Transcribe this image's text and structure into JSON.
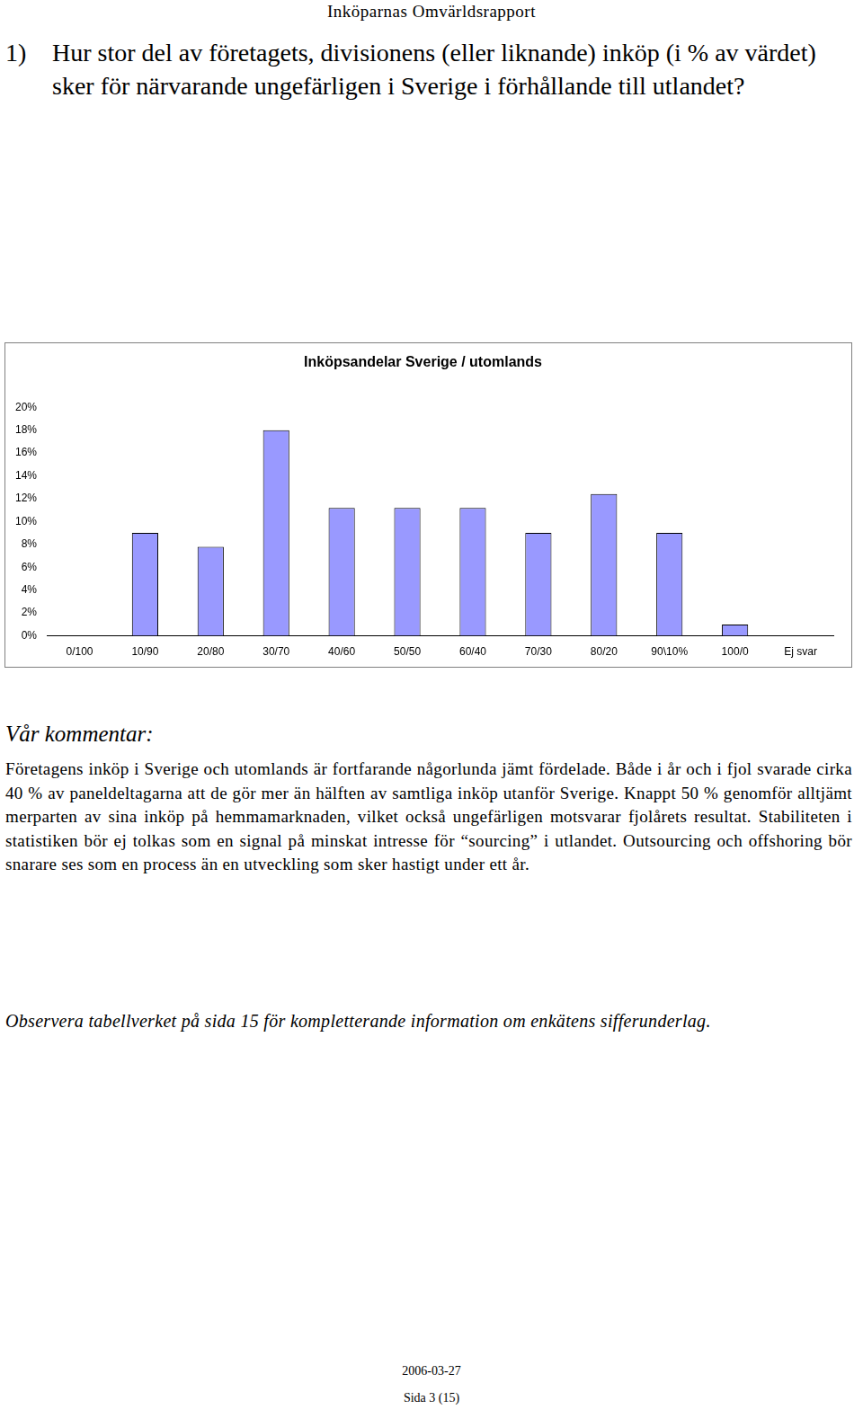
{
  "header": {
    "title": "Inköparnas Omvärldsrapport"
  },
  "question": {
    "number": "1)",
    "text": "Hur stor del av företagets, divisionens (eller liknande) inköp (i % av värdet) sker för närvarande ungefärligen i Sverige i förhållande till utlandet?"
  },
  "chart_data": {
    "type": "bar",
    "title": "Inköpsandelar Sverige / utomlands",
    "categories": [
      "0/100",
      "10/90",
      "20/80",
      "30/70",
      "40/60",
      "50/50",
      "60/40",
      "70/30",
      "80/20",
      "90\\10%",
      "100/0",
      "Ej svar"
    ],
    "values": [
      0,
      9,
      7.8,
      18,
      11.2,
      11.2,
      11.2,
      9,
      12.4,
      9,
      1,
      0
    ],
    "color": "#9999ff",
    "ylim": [
      0,
      20
    ],
    "yticks": [
      {
        "value": 0,
        "label": "0%"
      },
      {
        "value": 2,
        "label": "2%"
      },
      {
        "value": 4,
        "label": "4%"
      },
      {
        "value": 6,
        "label": "6%"
      },
      {
        "value": 8,
        "label": "8%"
      },
      {
        "value": 10,
        "label": "10%"
      },
      {
        "value": 12,
        "label": "12%"
      },
      {
        "value": 14,
        "label": "14%"
      },
      {
        "value": 16,
        "label": "16%"
      },
      {
        "value": 18,
        "label": "18%"
      },
      {
        "value": 20,
        "label": "20%"
      }
    ],
    "grid": false
  },
  "comment": {
    "heading": "Vår kommentar:",
    "text": "Företagens inköp i Sverige och utomlands är fortfarande någorlunda jämt fördelade. Både i år och i fjol svarade cirka 40 % av paneldeltagarna att de gör mer än hälften av samtliga inköp utanför Sverige. Knappt 50 % genomför alltjämt merparten av sina inköp på hemmamarknaden, vilket också ungefärligen motsvarar fjolårets resultat. Stabiliteten i statistiken bör ej tolkas som en signal på minskat intresse för “sourcing” i utlandet. Outsourcing och offshoring bör snarare ses som en process än en utveckling som sker hastigt under ett år."
  },
  "note": "Observera tabellverket på sida 15 för kompletterande information om enkätens sifferunderlag.",
  "footer": {
    "date": "2006-03-27",
    "page": "Sida 3 (15)"
  }
}
